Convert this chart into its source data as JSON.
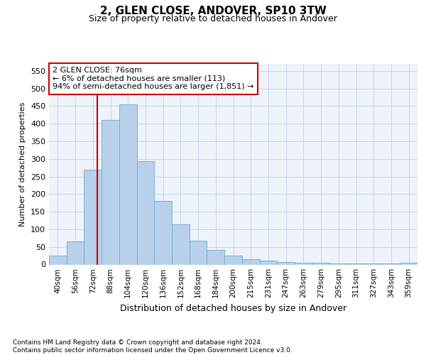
{
  "title_line1": "2, GLEN CLOSE, ANDOVER, SP10 3TW",
  "title_line2": "Size of property relative to detached houses in Andover",
  "xlabel": "Distribution of detached houses by size in Andover",
  "ylabel": "Number of detached properties",
  "categories": [
    "40sqm",
    "56sqm",
    "72sqm",
    "88sqm",
    "104sqm",
    "120sqm",
    "136sqm",
    "152sqm",
    "168sqm",
    "184sqm",
    "200sqm",
    "215sqm",
    "231sqm",
    "247sqm",
    "263sqm",
    "279sqm",
    "295sqm",
    "311sqm",
    "327sqm",
    "343sqm",
    "359sqm"
  ],
  "values": [
    25,
    65,
    270,
    410,
    455,
    293,
    180,
    113,
    68,
    42,
    25,
    15,
    12,
    8,
    6,
    5,
    4,
    3,
    3,
    3,
    5
  ],
  "bar_color": "#b8d0ea",
  "bar_edge_color": "#6aaad4",
  "grid_color": "#c8d4e8",
  "vline_color": "#cc0000",
  "vline_index": 2.25,
  "annotation_text": "2 GLEN CLOSE: 76sqm\n← 6% of detached houses are smaller (113)\n94% of semi-detached houses are larger (1,851) →",
  "annotation_box_edge_color": "#cc0000",
  "ylim": [
    0,
    570
  ],
  "yticks": [
    0,
    50,
    100,
    150,
    200,
    250,
    300,
    350,
    400,
    450,
    500,
    550
  ],
  "footer_line1": "Contains HM Land Registry data © Crown copyright and database right 2024.",
  "footer_line2": "Contains public sector information licensed under the Open Government Licence v3.0.",
  "bg_color": "#eef3fa",
  "title1_fontsize": 11,
  "title2_fontsize": 9,
  "ylabel_fontsize": 8,
  "xlabel_fontsize": 9,
  "tick_fontsize": 8,
  "xtick_fontsize": 7.5,
  "footer_fontsize": 6.5,
  "annot_fontsize": 8
}
